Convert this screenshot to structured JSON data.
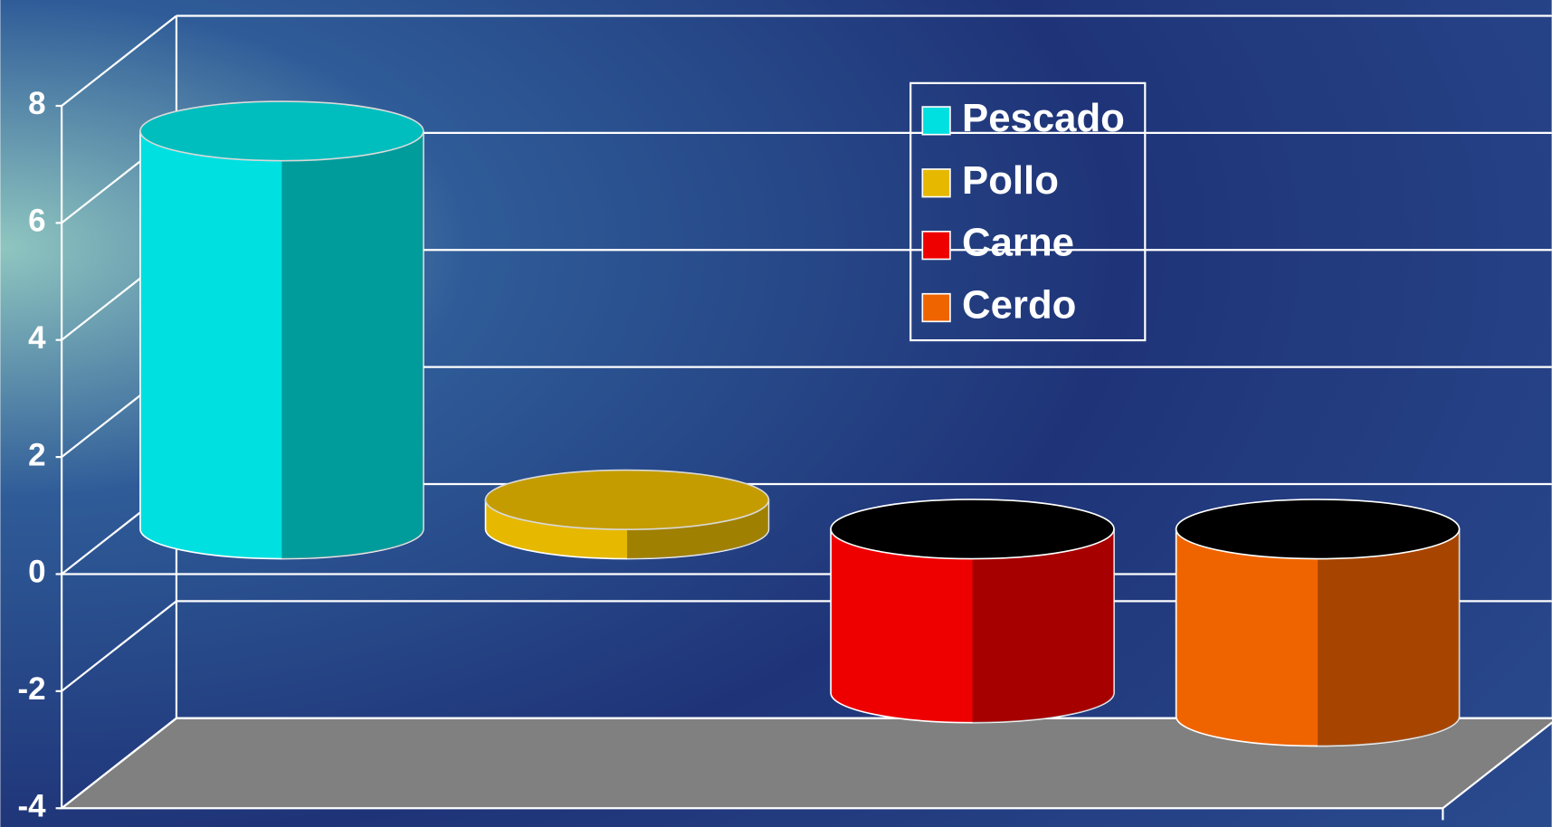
{
  "chart_data": {
    "type": "bar3d",
    "series": [
      {
        "name": "Pescado",
        "color": "#00e0e0",
        "values": [
          6.8
        ]
      },
      {
        "name": "Pollo",
        "color": "#e6b800",
        "values": [
          0.5
        ]
      },
      {
        "name": "Carne",
        "color": "#ee0000",
        "values": [
          -2.8
        ]
      },
      {
        "name": "Cerdo",
        "color": "#f06400",
        "values": [
          -3.2
        ]
      }
    ],
    "ylim": [
      -4,
      8
    ],
    "yticks": [
      -4,
      -2,
      0,
      2,
      4,
      6,
      8
    ],
    "grid": true,
    "legend": "upper-right"
  }
}
